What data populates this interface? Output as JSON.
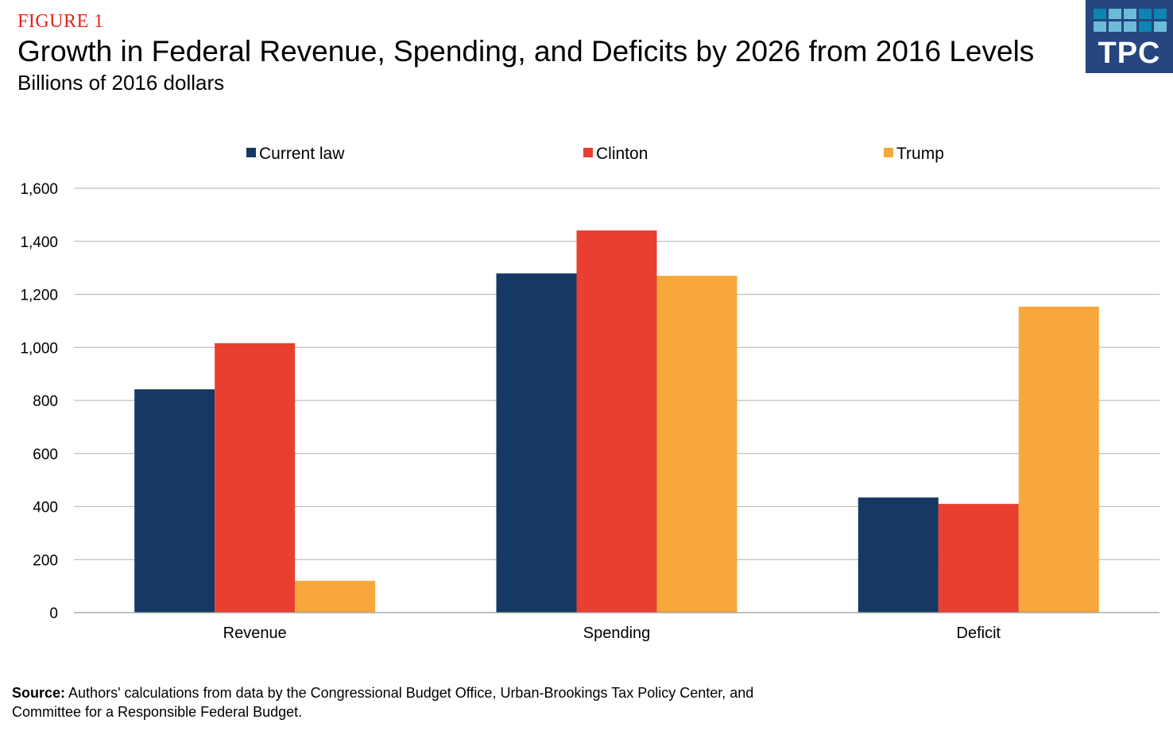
{
  "header": {
    "figure_label": "FIGURE 1",
    "title": "Growth in Federal Revenue, Spending, and Deficits by 2026 from 2016 Levels",
    "subtitle": "Billions of 2016 dollars"
  },
  "logo": {
    "text": "TPC",
    "cell_colors": [
      "#0e84b0",
      "#6cbcd9",
      "#6cbcd9",
      "#0e84b0",
      "#0e84b0",
      "#6cbcd9",
      "#6cbcd9",
      "#6cbcd9",
      "#0e84b0",
      "#6cbcd9"
    ]
  },
  "source": {
    "label": "Source:",
    "text": " Authors' calculations from data by the Congressional Budget Office, Urban-Brookings Tax Policy Center, and Committee for a Responsible Federal Budget."
  },
  "chart_data": {
    "type": "bar",
    "title": "Growth in Federal Revenue, Spending, and Deficits by 2026 from 2016 Levels",
    "subtitle": "Billions of 2016 dollars",
    "xlabel": "",
    "ylabel": "",
    "categories": [
      "Revenue",
      "Spending",
      "Deficit"
    ],
    "series": [
      {
        "name": "Current law",
        "color": "#163865",
        "values": [
          842,
          1279,
          434
        ]
      },
      {
        "name": "Clinton",
        "color": "#e83f31",
        "values": [
          1016,
          1441,
          410
        ]
      },
      {
        "name": "Trump",
        "color": "#f8a73d",
        "values": [
          120,
          1270,
          1154
        ]
      }
    ],
    "ylim": [
      0,
      1600
    ],
    "yticks": [
      0,
      200,
      400,
      600,
      800,
      1000,
      1200,
      1400,
      1600
    ],
    "ytick_labels": [
      "0",
      "200",
      "400",
      "600",
      "800",
      "1,000",
      "1,200",
      "1,400",
      "1,600"
    ],
    "grid": true,
    "legend_position": "top-center"
  }
}
